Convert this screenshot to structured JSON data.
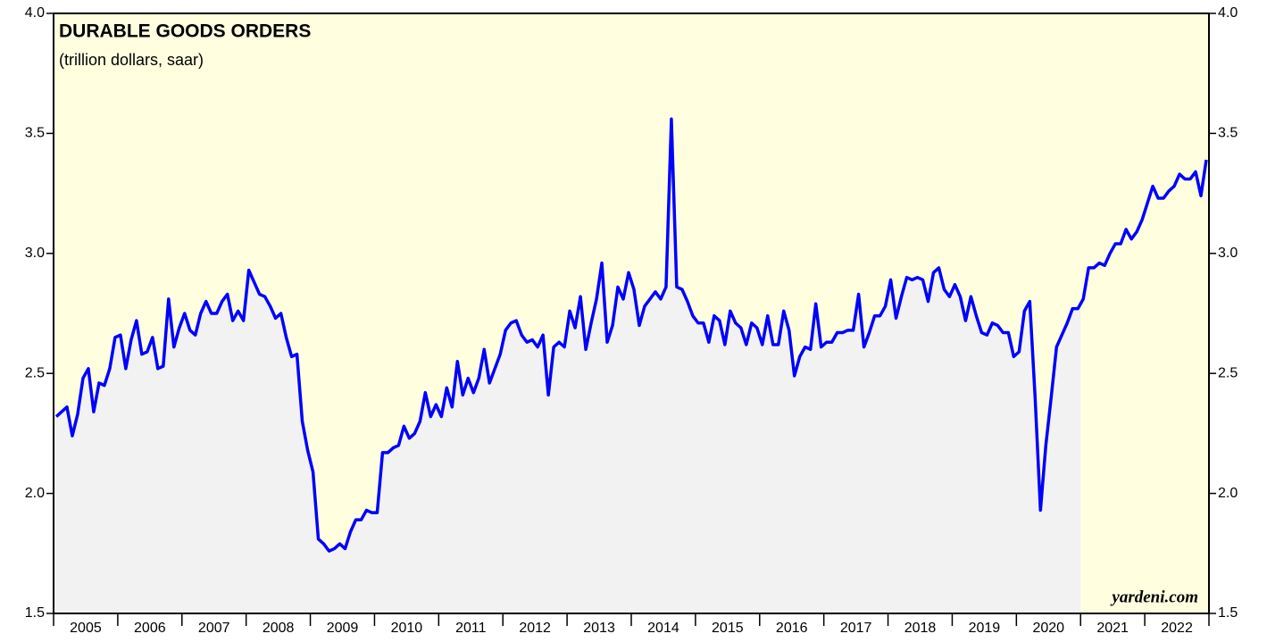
{
  "chart_data": {
    "type": "line",
    "title": "DURABLE GOODS ORDERS",
    "subtitle": "(trillion dollars, saar)",
    "credit": "yardeni.com",
    "categories": [
      null,
      null,
      null,
      null,
      null,
      null,
      "2005",
      null,
      null,
      null,
      null,
      null,
      null,
      null,
      null,
      null,
      null,
      null,
      "2006",
      null,
      null,
      null,
      null,
      null,
      null,
      null,
      null,
      null,
      null,
      null,
      "2007",
      null,
      null,
      null,
      null,
      null,
      null,
      null,
      null,
      null,
      null,
      null,
      "2008",
      null,
      null,
      null,
      null,
      null,
      null,
      null,
      null,
      null,
      null,
      null,
      "2009",
      null,
      null,
      null,
      null,
      null,
      null,
      null,
      null,
      null,
      null,
      null,
      "2010",
      null,
      null,
      null,
      null,
      null,
      null,
      null,
      null,
      null,
      null,
      null,
      "2011",
      null,
      null,
      null,
      null,
      null,
      null,
      null,
      null,
      null,
      null,
      null,
      "2012",
      null,
      null,
      null,
      null,
      null,
      null,
      null,
      null,
      null,
      null,
      null,
      "2013",
      null,
      null,
      null,
      null,
      null,
      null,
      null,
      null,
      null,
      null,
      null,
      "2014",
      null,
      null,
      null,
      null,
      null,
      null,
      null,
      null,
      null,
      null,
      null,
      "2015",
      null,
      null,
      null,
      null,
      null,
      null,
      null,
      null,
      null,
      null,
      null,
      "2016",
      null,
      null,
      null,
      null,
      null,
      null,
      null,
      null,
      null,
      null,
      null,
      "2017",
      null,
      null,
      null,
      null,
      null,
      null,
      null,
      null,
      null,
      null,
      null,
      "2018",
      null,
      null,
      null,
      null,
      null,
      null,
      null,
      null,
      null,
      null,
      null,
      "2019",
      null,
      null,
      null,
      null,
      null,
      null,
      null,
      null,
      null,
      null,
      null,
      "2020",
      null,
      null,
      null,
      null,
      null,
      null,
      null,
      null,
      null,
      null,
      null,
      "2021",
      null,
      null,
      null,
      null,
      null,
      null,
      null,
      null,
      null,
      null,
      null,
      "2022",
      null,
      null,
      null,
      null,
      null
    ],
    "series": [
      {
        "color": "#0000ff",
        "values": [
          2.32,
          2.34,
          2.36,
          2.24,
          2.33,
          2.48,
          2.52,
          2.34,
          2.46,
          2.45,
          2.52,
          2.65,
          2.66,
          2.52,
          2.64,
          2.72,
          2.58,
          2.59,
          2.65,
          2.52,
          2.53,
          2.81,
          2.61,
          2.69,
          2.75,
          2.68,
          2.66,
          2.75,
          2.8,
          2.75,
          2.75,
          2.8,
          2.83,
          2.72,
          2.76,
          2.72,
          2.93,
          2.88,
          2.83,
          2.82,
          2.78,
          2.73,
          2.75,
          2.65,
          2.57,
          2.58,
          2.3,
          2.18,
          2.09,
          1.81,
          1.79,
          1.76,
          1.77,
          1.79,
          1.77,
          1.84,
          1.89,
          1.89,
          1.93,
          1.92,
          1.92,
          2.17,
          2.17,
          2.19,
          2.2,
          2.28,
          2.23,
          2.25,
          2.3,
          2.42,
          2.32,
          2.37,
          2.32,
          2.44,
          2.36,
          2.55,
          2.41,
          2.48,
          2.42,
          2.48,
          2.6,
          2.46,
          2.52,
          2.58,
          2.68,
          2.71,
          2.72,
          2.66,
          2.63,
          2.64,
          2.61,
          2.66,
          2.41,
          2.61,
          2.63,
          2.61,
          2.76,
          2.69,
          2.82,
          2.6,
          2.71,
          2.81,
          2.96,
          2.63,
          2.7,
          2.86,
          2.81,
          2.92,
          2.85,
          2.7,
          2.78,
          2.81,
          2.84,
          2.81,
          2.86,
          3.56,
          2.86,
          2.85,
          2.8,
          2.74,
          2.71,
          2.71,
          2.63,
          2.74,
          2.72,
          2.62,
          2.76,
          2.71,
          2.69,
          2.62,
          2.71,
          2.69,
          2.62,
          2.74,
          2.62,
          2.62,
          2.76,
          2.68,
          2.49,
          2.57,
          2.61,
          2.6,
          2.79,
          2.61,
          2.63,
          2.63,
          2.67,
          2.67,
          2.68,
          2.68,
          2.83,
          2.61,
          2.67,
          2.74,
          2.74,
          2.78,
          2.89,
          2.73,
          2.82,
          2.9,
          2.89,
          2.9,
          2.89,
          2.8,
          2.92,
          2.94,
          2.85,
          2.82,
          2.87,
          2.82,
          2.72,
          2.82,
          2.74,
          2.67,
          2.66,
          2.71,
          2.7,
          2.67,
          2.67,
          2.57,
          2.59,
          2.76,
          2.8,
          2.4,
          1.93,
          2.2,
          2.4,
          2.61,
          2.66,
          2.71,
          2.77,
          2.77,
          2.81,
          2.94,
          2.94,
          2.96,
          2.95,
          3.0,
          3.04,
          3.04,
          3.1,
          3.06,
          3.09,
          3.14,
          3.21,
          3.28,
          3.23,
          3.23,
          3.26,
          3.28,
          3.33,
          3.31,
          3.31,
          3.34,
          3.24,
          3.39
        ]
      }
    ],
    "area_fill": {
      "color": "#f2f2f2",
      "points": 192
    },
    "background": "#ffffe0",
    "ylim": [
      1.5,
      4.0
    ],
    "yticks": [
      {
        "value": 1.5,
        "label": "1.5"
      },
      {
        "value": 2,
        "label": "2.0"
      },
      2.5,
      {
        "value": 3,
        "label": "3.0"
      },
      3.5,
      {
        "value": 4,
        "label": "4.0"
      }
    ]
  }
}
